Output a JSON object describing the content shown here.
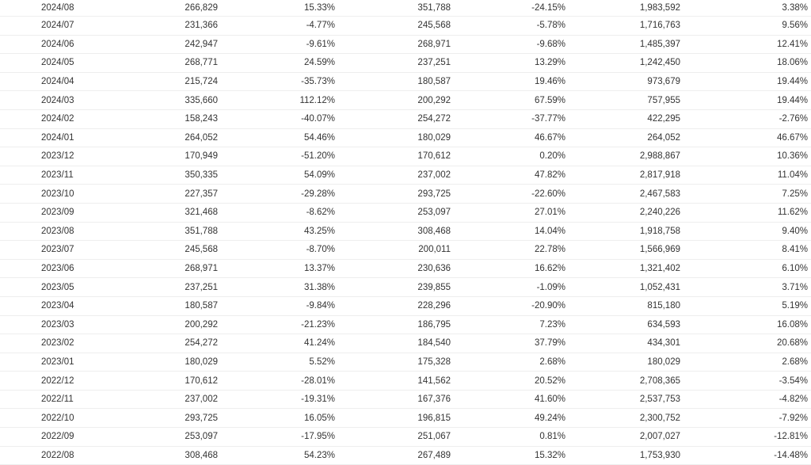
{
  "colors": {
    "text": "#333333",
    "negative": "#ff1f3a",
    "divider": "#eeeeee"
  },
  "rows": [
    [
      "2024/08",
      "266,829",
      "15.33%",
      "351,788",
      "-24.15%",
      "1,983,592",
      "3.38%"
    ],
    [
      "2024/07",
      "231,366",
      "-4.77%",
      "245,568",
      "-5.78%",
      "1,716,763",
      "9.56%"
    ],
    [
      "2024/06",
      "242,947",
      "-9.61%",
      "268,971",
      "-9.68%",
      "1,485,397",
      "12.41%"
    ],
    [
      "2024/05",
      "268,771",
      "24.59%",
      "237,251",
      "13.29%",
      "1,242,450",
      "18.06%"
    ],
    [
      "2024/04",
      "215,724",
      "-35.73%",
      "180,587",
      "19.46%",
      "973,679",
      "19.44%"
    ],
    [
      "2024/03",
      "335,660",
      "112.12%",
      "200,292",
      "67.59%",
      "757,955",
      "19.44%"
    ],
    [
      "2024/02",
      "158,243",
      "-40.07%",
      "254,272",
      "-37.77%",
      "422,295",
      "-2.76%"
    ],
    [
      "2024/01",
      "264,052",
      "54.46%",
      "180,029",
      "46.67%",
      "264,052",
      "46.67%"
    ],
    [
      "2023/12",
      "170,949",
      "-51.20%",
      "170,612",
      "0.20%",
      "2,988,867",
      "10.36%"
    ],
    [
      "2023/11",
      "350,335",
      "54.09%",
      "237,002",
      "47.82%",
      "2,817,918",
      "11.04%"
    ],
    [
      "2023/10",
      "227,357",
      "-29.28%",
      "293,725",
      "-22.60%",
      "2,467,583",
      "7.25%"
    ],
    [
      "2023/09",
      "321,468",
      "-8.62%",
      "253,097",
      "27.01%",
      "2,240,226",
      "11.62%"
    ],
    [
      "2023/08",
      "351,788",
      "43.25%",
      "308,468",
      "14.04%",
      "1,918,758",
      "9.40%"
    ],
    [
      "2023/07",
      "245,568",
      "-8.70%",
      "200,011",
      "22.78%",
      "1,566,969",
      "8.41%"
    ],
    [
      "2023/06",
      "268,971",
      "13.37%",
      "230,636",
      "16.62%",
      "1,321,402",
      "6.10%"
    ],
    [
      "2023/05",
      "237,251",
      "31.38%",
      "239,855",
      "-1.09%",
      "1,052,431",
      "3.71%"
    ],
    [
      "2023/04",
      "180,587",
      "-9.84%",
      "228,296",
      "-20.90%",
      "815,180",
      "5.19%"
    ],
    [
      "2023/03",
      "200,292",
      "-21.23%",
      "186,795",
      "7.23%",
      "634,593",
      "16.08%"
    ],
    [
      "2023/02",
      "254,272",
      "41.24%",
      "184,540",
      "37.79%",
      "434,301",
      "20.68%"
    ],
    [
      "2023/01",
      "180,029",
      "5.52%",
      "175,328",
      "2.68%",
      "180,029",
      "2.68%"
    ],
    [
      "2022/12",
      "170,612",
      "-28.01%",
      "141,562",
      "20.52%",
      "2,708,365",
      "-3.54%"
    ],
    [
      "2022/11",
      "237,002",
      "-19.31%",
      "167,376",
      "41.60%",
      "2,537,753",
      "-4.82%"
    ],
    [
      "2022/10",
      "293,725",
      "16.05%",
      "196,815",
      "49.24%",
      "2,300,752",
      "-7.92%"
    ],
    [
      "2022/09",
      "253,097",
      "-17.95%",
      "251,067",
      "0.81%",
      "2,007,027",
      "-12.81%"
    ],
    [
      "2022/08",
      "308,468",
      "54.23%",
      "267,489",
      "15.32%",
      "1,753,930",
      "-14.48%"
    ]
  ]
}
